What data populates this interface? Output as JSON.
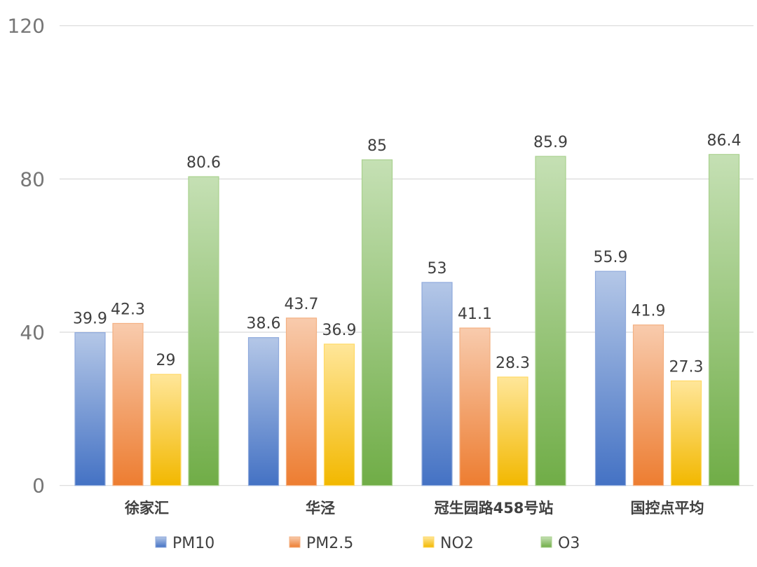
{
  "chart_data": {
    "type": "bar",
    "title": "",
    "xlabel": "",
    "ylabel": "",
    "ylim": [
      0,
      120
    ],
    "yticks": [
      0,
      40,
      80,
      120
    ],
    "grid": true,
    "legend_position": "bottom",
    "categories": [
      "徐家汇",
      "华泾",
      "冠生园路458号站",
      "国控点平均"
    ],
    "series": [
      {
        "name": "PM10",
        "values": [
          39.9,
          38.6,
          53,
          55.9
        ],
        "color_top": "#b4c7e7",
        "color_bottom": "#4472c4",
        "border": "#8faadc"
      },
      {
        "name": "PM2.5",
        "values": [
          42.3,
          43.7,
          41.1,
          41.9
        ],
        "color_top": "#f8cbad",
        "color_bottom": "#ed7d31",
        "border": "#f4b183"
      },
      {
        "name": "NO2",
        "values": [
          29,
          36.9,
          28.3,
          27.3
        ],
        "color_top": "#ffe699",
        "color_bottom": "#f2b800",
        "border": "#ffd966"
      },
      {
        "name": "O3",
        "values": [
          80.6,
          85,
          85.9,
          86.4
        ],
        "color_top": "#c5e0b4",
        "color_bottom": "#70ad47",
        "border": "#a9d18e"
      }
    ]
  }
}
